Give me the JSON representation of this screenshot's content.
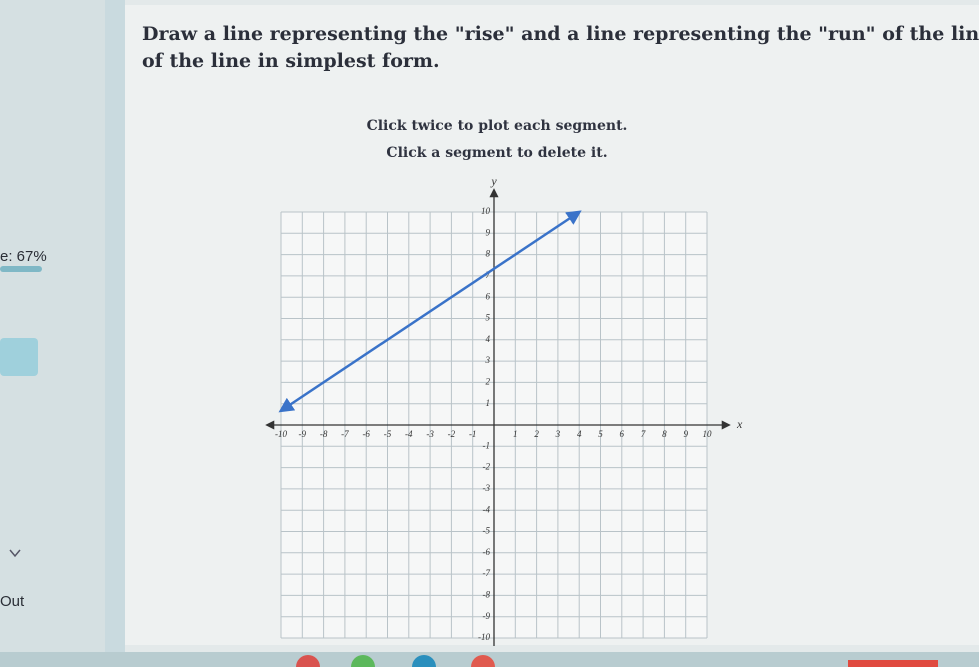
{
  "instructions": [
    "Draw a line representing the \"rise\" and a line representing the \"run\" of the line. State",
    "of the line in simplest form."
  ],
  "hints": [
    "Click twice to plot each segment.",
    "Click a segment to delete it."
  ],
  "sidebar": {
    "progress": "e: 67%",
    "label": "Out"
  },
  "graph": {
    "x_label": "x",
    "y_label": "y",
    "xticks": [
      -10,
      -9,
      -8,
      -7,
      -6,
      -5,
      -4,
      -3,
      -2,
      -1,
      1,
      2,
      3,
      4,
      5,
      6,
      7,
      8,
      9,
      10
    ],
    "yticks": [
      -10,
      -9,
      -8,
      -7,
      -6,
      -5,
      -4,
      -3,
      -2,
      -1,
      1,
      2,
      3,
      4,
      5,
      6,
      7,
      8,
      9,
      10
    ],
    "line": {
      "x": [
        -10,
        4
      ],
      "y": [
        0.67,
        10
      ]
    }
  }
}
